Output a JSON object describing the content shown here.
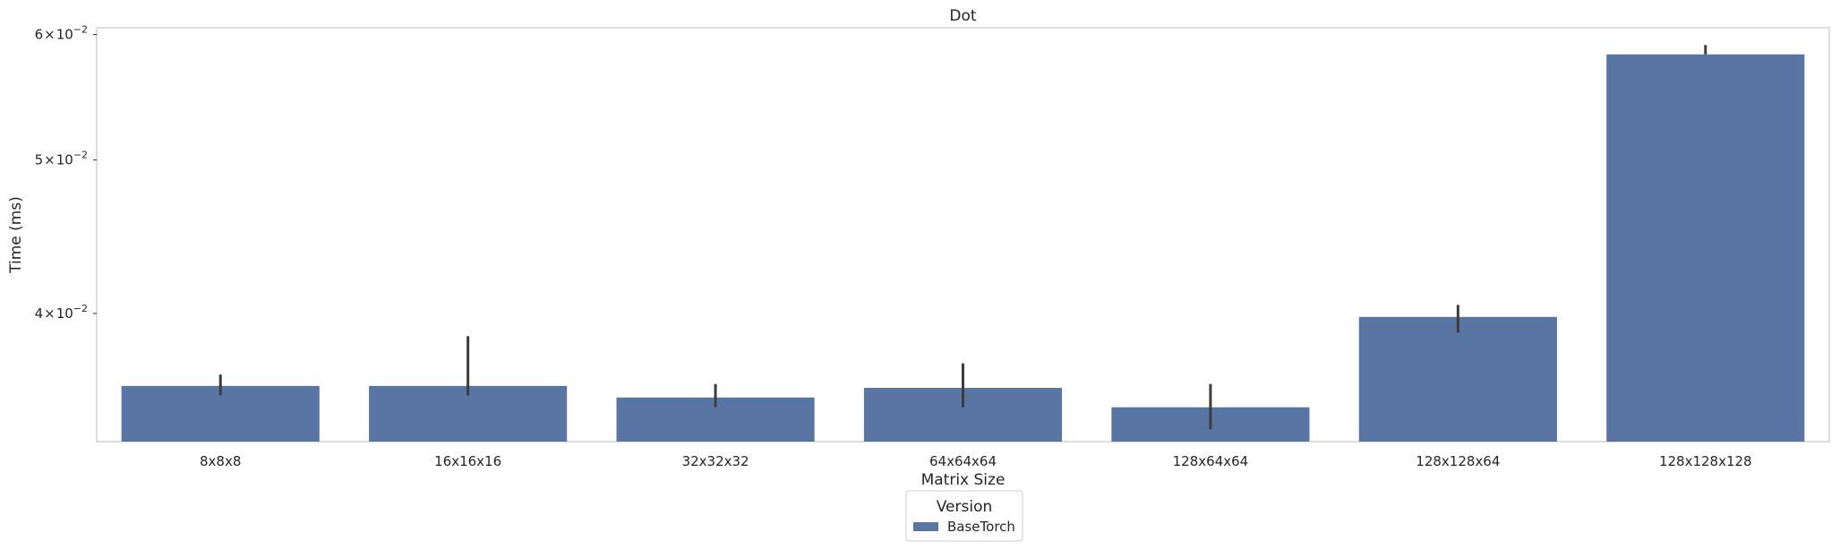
{
  "chart_data": {
    "type": "bar",
    "title": "Dot",
    "xlabel": "Matrix Size",
    "ylabel": "Time (ms)",
    "yscale": "log",
    "categories": [
      "8x8x8",
      "16x16x16",
      "32x32x32",
      "64x64x64",
      "128x64x64",
      "128x128x64",
      "128x128x128"
    ],
    "series": [
      {
        "name": "BaseTorch",
        "color": "#5975a4",
        "values": [
          0.036,
          0.036,
          0.0354,
          0.0359,
          0.0349,
          0.0398,
          0.0583
        ],
        "error_low": [
          0.0355,
          0.0355,
          0.0349,
          0.0349,
          0.0338,
          0.0389,
          0.0583
        ],
        "error_high": [
          0.0366,
          0.0387,
          0.0361,
          0.0372,
          0.0361,
          0.0405,
          0.0591
        ]
      }
    ],
    "ylim": [
      0.0332,
      0.0606
    ],
    "yticks": [
      {
        "value": 0.04,
        "mantissa": "4",
        "base": "10",
        "exponent": "−2"
      },
      {
        "value": 0.05,
        "mantissa": "5",
        "base": "10",
        "exponent": "−2"
      },
      {
        "value": 0.06,
        "mantissa": "6",
        "base": "10",
        "exponent": "−2"
      }
    ],
    "grid": false,
    "legend": {
      "title": "Version",
      "position": "below-center"
    }
  }
}
